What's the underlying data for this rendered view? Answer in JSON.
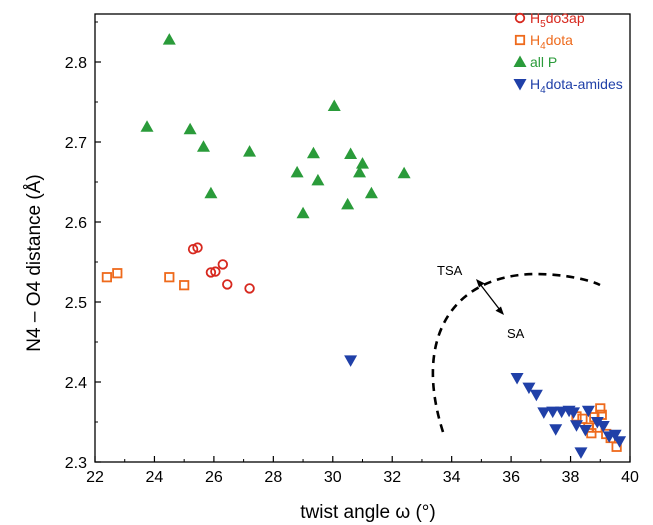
{
  "chart_data": {
    "type": "scatter",
    "xlabel": "twist angle ω (°)",
    "ylabel": "N4 – O4 distance (Å)",
    "xlim": [
      22,
      40
    ],
    "ylim": [
      2.3,
      2.85
    ],
    "xticks": [
      "22",
      "24",
      "26",
      "28",
      "30",
      "32",
      "34",
      "36",
      "38",
      "40"
    ],
    "yticks": [
      "2.3",
      "2.4",
      "2.5",
      "2.6",
      "2.7",
      "2.8"
    ],
    "legend_position": "top-right",
    "series": [
      {
        "name": "H5do3ap",
        "legend": {
          "base": "H",
          "sub": "5",
          "rest": "do3ap"
        },
        "marker": "circle-open",
        "color": "#d7281e",
        "points": [
          [
            25.3,
            2.566
          ],
          [
            25.45,
            2.568
          ],
          [
            25.9,
            2.537
          ],
          [
            26.05,
            2.538
          ],
          [
            26.3,
            2.547
          ],
          [
            26.45,
            2.522
          ],
          [
            27.2,
            2.517
          ]
        ]
      },
      {
        "name": "H4dota",
        "legend": {
          "base": "H",
          "sub": "4",
          "rest": "dota"
        },
        "marker": "square-open",
        "color": "#ee6a1c",
        "points": [
          [
            22.4,
            2.531
          ],
          [
            22.75,
            2.536
          ],
          [
            24.5,
            2.531
          ],
          [
            25.0,
            2.521
          ],
          [
            38.2,
            2.357
          ],
          [
            38.4,
            2.354
          ],
          [
            38.6,
            2.343
          ],
          [
            38.7,
            2.336
          ],
          [
            38.8,
            2.356
          ],
          [
            38.9,
            2.343
          ],
          [
            39.0,
            2.367
          ],
          [
            39.05,
            2.359
          ],
          [
            39.2,
            2.335
          ],
          [
            39.35,
            2.33
          ],
          [
            39.55,
            2.319
          ]
        ]
      },
      {
        "name": "all P",
        "legend": {
          "base": "all P",
          "sub": "",
          "rest": ""
        },
        "marker": "triangle-up",
        "color": "#2a9b3a",
        "points": [
          [
            24.5,
            2.828
          ],
          [
            23.75,
            2.719
          ],
          [
            25.2,
            2.716
          ],
          [
            25.65,
            2.694
          ],
          [
            25.9,
            2.636
          ],
          [
            27.2,
            2.688
          ],
          [
            28.8,
            2.662
          ],
          [
            29.0,
            2.611
          ],
          [
            29.35,
            2.686
          ],
          [
            29.5,
            2.652
          ],
          [
            30.05,
            2.745
          ],
          [
            30.5,
            2.622
          ],
          [
            30.6,
            2.685
          ],
          [
            30.9,
            2.662
          ],
          [
            31.0,
            2.673
          ],
          [
            31.3,
            2.636
          ],
          [
            32.4,
            2.661
          ]
        ]
      },
      {
        "name": "H4dota-amides",
        "legend": {
          "base": "H",
          "sub": "4",
          "rest": "dota-amides"
        },
        "marker": "triangle-down",
        "color": "#2040a8",
        "points": [
          [
            30.6,
            2.427
          ],
          [
            36.2,
            2.405
          ],
          [
            36.6,
            2.393
          ],
          [
            36.85,
            2.384
          ],
          [
            37.1,
            2.362
          ],
          [
            37.4,
            2.363
          ],
          [
            37.5,
            2.341
          ],
          [
            37.7,
            2.363
          ],
          [
            37.95,
            2.364
          ],
          [
            38.1,
            2.362
          ],
          [
            38.2,
            2.346
          ],
          [
            38.35,
            2.312
          ],
          [
            38.5,
            2.34
          ],
          [
            38.6,
            2.364
          ],
          [
            38.9,
            2.35
          ],
          [
            39.1,
            2.345
          ],
          [
            39.3,
            2.332
          ],
          [
            39.5,
            2.334
          ],
          [
            39.65,
            2.326
          ]
        ]
      }
    ],
    "annotations": [
      {
        "text": "TSA",
        "x": 34.4,
        "y": 2.541
      },
      {
        "text": "SA",
        "x": 36.1,
        "y": 2.473
      }
    ]
  }
}
